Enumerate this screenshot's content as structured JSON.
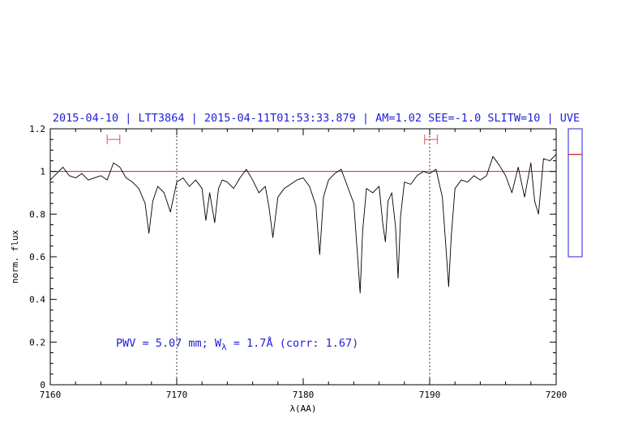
{
  "chart_data": {
    "type": "line",
    "title": "2015-04-10 | LTT3864 | 2015-04-11T01:53:33.879 | AM=1.02 SEE=-1.0 SLITW=10 | UVE",
    "xlabel": "λ(AA)",
    "ylabel": "norm. flux",
    "xlim": [
      7160,
      7200
    ],
    "ylim": [
      0,
      1.2
    ],
    "x_ticks": [
      "7160",
      "7170",
      "7180",
      "7190",
      "7200"
    ],
    "y_ticks": [
      "0",
      "0.2",
      "0.4",
      "0.6",
      "0.8",
      "1",
      "1.2"
    ],
    "continuum_level": 1.0,
    "vertical_markers": [
      7170,
      7190
    ],
    "error_bar_markers": [
      {
        "x_low": 7164.5,
        "x_high": 7165.5,
        "y": 1.15
      },
      {
        "x_low": 7189.6,
        "x_high": 7190.6,
        "y": 1.15
      }
    ],
    "annotation": {
      "prefix": "PWV = 5.07 mm; W",
      "subscript": "λ",
      "suffix": " = 1.7Å (corr: 1.67)"
    },
    "series": [
      {
        "x": [
          7160,
          7160.5,
          7161,
          7161.5,
          7162,
          7162.5,
          7163,
          7163.5,
          7164,
          7164.5,
          7165,
          7165.5,
          7166,
          7166.5,
          7167,
          7167.5,
          7167.8,
          7168.1,
          7168.5,
          7169,
          7169.5,
          7170,
          7170.5,
          7171,
          7171.5,
          7172,
          7172.3,
          7172.6,
          7173,
          7173.3,
          7173.6,
          7174,
          7174.5,
          7175,
          7175.5,
          7176,
          7176.5,
          7177,
          7177.3,
          7177.6,
          7178,
          7178.5,
          7179,
          7179.5,
          7180,
          7180.5,
          7181,
          7181.3,
          7181.6,
          7182,
          7182.5,
          7183,
          7183.5,
          7184,
          7184.3,
          7184.5,
          7184.7,
          7185,
          7185.5,
          7186,
          7186.3,
          7186.5,
          7186.7,
          7187,
          7187.3,
          7187.5,
          7187.7,
          7188,
          7188.5,
          7189,
          7189.5,
          7190,
          7190.5,
          7191,
          7191.3,
          7191.5,
          7191.7,
          7192,
          7192.5,
          7193,
          7193.5,
          7194,
          7194.5,
          7195,
          7195.5,
          7196,
          7196.5,
          7197,
          7197.5,
          7198,
          7198.3,
          7198.6,
          7199,
          7199.5,
          7200
        ],
        "y": [
          0.96,
          0.99,
          1.02,
          0.98,
          0.97,
          0.99,
          0.96,
          0.97,
          0.98,
          0.96,
          1.04,
          1.02,
          0.97,
          0.95,
          0.92,
          0.85,
          0.71,
          0.86,
          0.93,
          0.9,
          0.81,
          0.95,
          0.97,
          0.93,
          0.96,
          0.92,
          0.77,
          0.9,
          0.76,
          0.92,
          0.96,
          0.95,
          0.92,
          0.97,
          1.01,
          0.96,
          0.9,
          0.93,
          0.83,
          0.69,
          0.88,
          0.92,
          0.94,
          0.96,
          0.97,
          0.93,
          0.84,
          0.61,
          0.88,
          0.96,
          0.99,
          1.01,
          0.93,
          0.85,
          0.6,
          0.43,
          0.72,
          0.92,
          0.9,
          0.93,
          0.75,
          0.67,
          0.86,
          0.9,
          0.74,
          0.5,
          0.79,
          0.95,
          0.94,
          0.98,
          1.0,
          0.99,
          1.01,
          0.88,
          0.63,
          0.46,
          0.69,
          0.92,
          0.96,
          0.95,
          0.98,
          0.96,
          0.98,
          1.07,
          1.03,
          0.98,
          0.9,
          1.02,
          0.88,
          1.04,
          0.86,
          0.8,
          1.06,
          1.05,
          1.08
        ]
      }
    ]
  },
  "side_panel": {
    "ylim": [
      0,
      1.2
    ],
    "marker_value": 0.96
  }
}
